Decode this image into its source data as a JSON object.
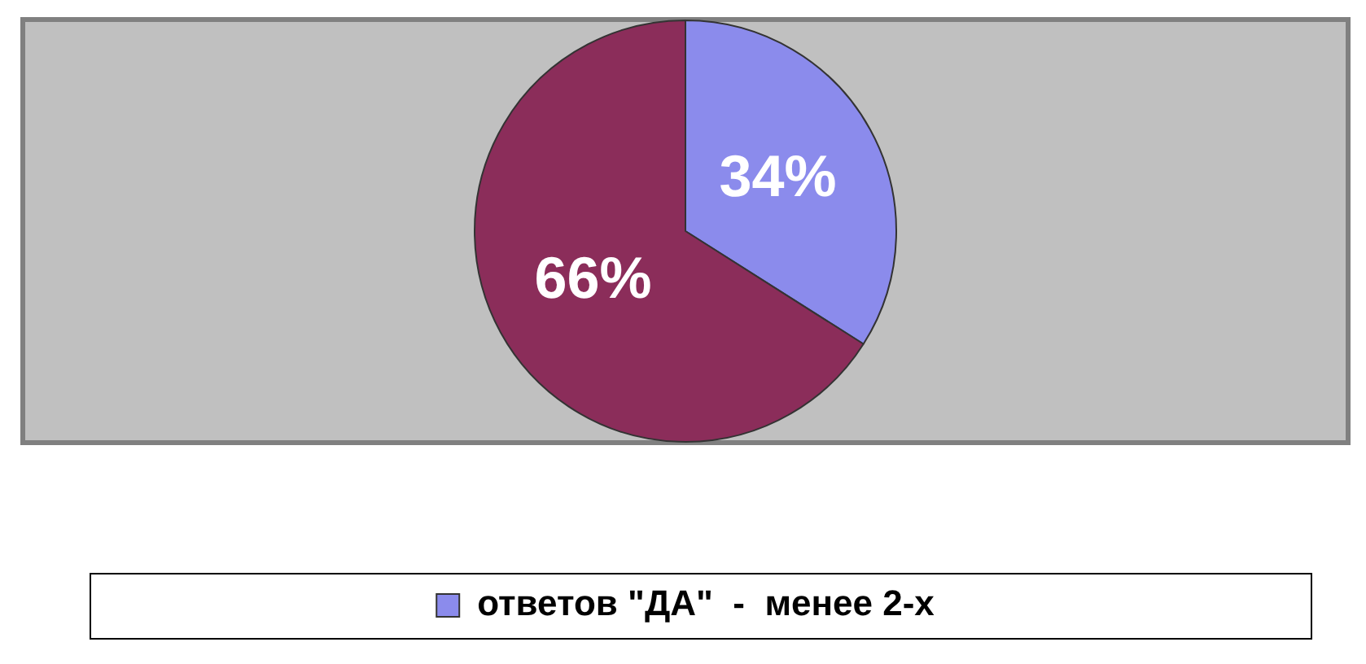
{
  "chart_data": {
    "type": "pie",
    "categories": [
      "ответов \"ДА\"  -  менее 2-х",
      null
    ],
    "values": [
      34,
      66
    ],
    "colors": [
      "#8b8bec",
      "#8b2d5a"
    ],
    "value_labels": [
      "34%",
      "66%"
    ],
    "legend": "bottom"
  }
}
